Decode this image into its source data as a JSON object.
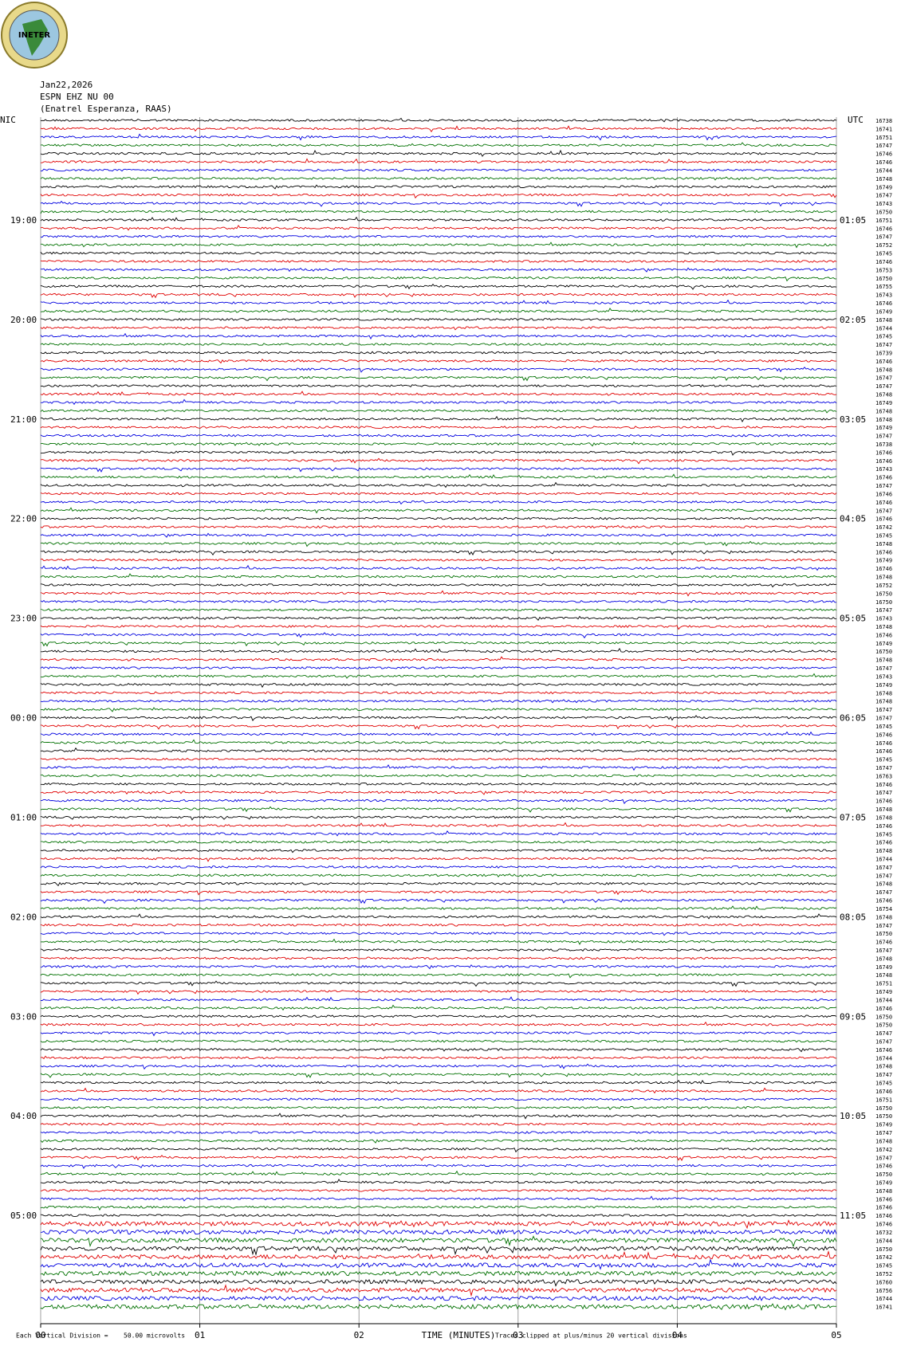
{
  "logo_text": "INETER",
  "chart_data": {
    "type": "helicorder",
    "header": [
      "Jan22,2026",
      "ESPN EHZ NU 00",
      "(Enatrel Esperanza, RAAS)"
    ],
    "left_zone": "NIC",
    "right_zone": "UTC",
    "left_labels": [
      "19:00",
      "20:00",
      "21:00",
      "22:00",
      "23:00",
      "00:00",
      "01:00",
      "02:00",
      "03:00",
      "04:00",
      "05:00"
    ],
    "right_labels": [
      "01:05",
      "02:05",
      "03:05",
      "04:05",
      "05:05",
      "06:05",
      "07:05",
      "08:05",
      "09:05",
      "10:05",
      "11:05"
    ],
    "trace_colors": [
      "#000000",
      "#e00000",
      "#0000e0",
      "#007000"
    ],
    "line_counts": [
      16738,
      16741,
      16751,
      16747,
      16746,
      16746,
      16744,
      16748,
      16749,
      16747,
      16743,
      16750,
      16751,
      16746,
      16747,
      16752,
      16745,
      16746,
      16753,
      16750,
      16755,
      16743,
      16746,
      16749,
      16748,
      16744,
      16745,
      16747,
      16739,
      16746,
      16748,
      16747,
      16747,
      16748,
      16749,
      16748,
      16748,
      16749,
      16747,
      16738,
      16746,
      16746,
      16743,
      16746,
      16747,
      16746,
      16746,
      16747,
      16746,
      16742,
      16745,
      16748,
      16746,
      16749,
      16746,
      16748,
      16752,
      16750,
      16750,
      16747,
      16743,
      16748,
      16746,
      16749,
      16750,
      16748,
      16747,
      16743,
      16749,
      16748,
      16748,
      16747,
      16747,
      16745,
      16746,
      16746,
      16746,
      16745,
      16747,
      16763,
      16746,
      16747,
      16746,
      16748,
      16748,
      16746,
      16745,
      16746,
      16748,
      16744,
      16747,
      16747,
      16748,
      16747,
      16746,
      16754,
      16748,
      16747,
      16750,
      16746,
      16747,
      16748,
      16749,
      16748,
      16751,
      16749,
      16744,
      16746,
      16750,
      16750,
      16747,
      16747,
      16746,
      16744,
      16748,
      16747,
      16745,
      16746,
      16751,
      16750,
      16750,
      16749,
      16747,
      16748,
      16742,
      16747,
      16746,
      16750,
      16749,
      16748,
      16746,
      16746,
      16746,
      16746,
      16732,
      16744,
      16750,
      16742,
      16745,
      16752,
      16760,
      16756,
      16744,
      16741
    ],
    "x_label": "TIME (MINUTES)",
    "xlim": [
      0,
      5
    ],
    "xticks": [
      {
        "value": 0,
        "label": "00"
      },
      {
        "value": 1,
        "label": "01"
      },
      {
        "value": 2,
        "label": "02"
      },
      {
        "value": 3,
        "label": "03"
      },
      {
        "value": 4,
        "label": "04"
      },
      {
        "value": 5,
        "label": "05"
      }
    ],
    "grid": true,
    "footer_left": "Each Vertical Division =",
    "footer_scale": "50.00 microvolts",
    "footer_right": "Traces clipped at plus/minus 20 vertical divisions"
  }
}
